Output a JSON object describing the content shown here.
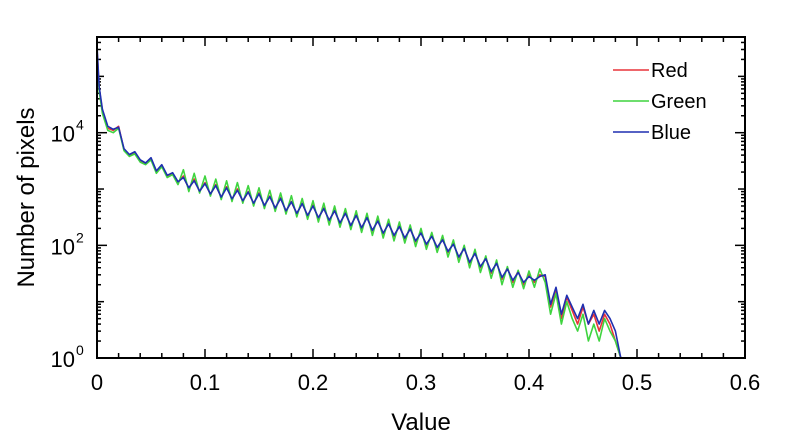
{
  "chart_data": {
    "type": "line",
    "title": "",
    "xlabel": "Value",
    "ylabel": "Number of pixels",
    "xlim": [
      0,
      0.6
    ],
    "ylim": [
      1,
      500000
    ],
    "yscale": "log",
    "grid": false,
    "legend_position": "top-right",
    "x_ticks": [
      "0",
      "0.1",
      "0.2",
      "0.3",
      "0.4",
      "0.5",
      "0.6"
    ],
    "x_tick_values": [
      0,
      0.1,
      0.2,
      0.3,
      0.4,
      0.5,
      0.6
    ],
    "y_ticks": [
      {
        "base": "10",
        "exp": "0",
        "value": 1
      },
      {
        "base": "10",
        "exp": "2",
        "value": 100
      },
      {
        "base": "10",
        "exp": "4",
        "value": 10000
      }
    ],
    "series": [
      {
        "name": "Red",
        "color": "#e8343a",
        "points": [
          [
            0,
            300000
          ],
          [
            0.002,
            60000
          ],
          [
            0.005,
            25000
          ],
          [
            0.01,
            12000
          ],
          [
            0.015,
            11000
          ],
          [
            0.02,
            13000
          ],
          [
            0.025,
            5000
          ],
          [
            0.03,
            4000
          ],
          [
            0.035,
            4500
          ],
          [
            0.04,
            3200
          ],
          [
            0.045,
            2800
          ],
          [
            0.05,
            3500
          ],
          [
            0.055,
            2000
          ],
          [
            0.06,
            2600
          ],
          [
            0.065,
            1700
          ],
          [
            0.07,
            1900
          ],
          [
            0.075,
            1300
          ],
          [
            0.08,
            1700
          ],
          [
            0.085,
            1000
          ],
          [
            0.09,
            1500
          ],
          [
            0.095,
            900
          ],
          [
            0.1,
            1300
          ],
          [
            0.105,
            800
          ],
          [
            0.11,
            1200
          ],
          [
            0.115,
            700
          ],
          [
            0.12,
            1100
          ],
          [
            0.125,
            650
          ],
          [
            0.13,
            1000
          ],
          [
            0.135,
            600
          ],
          [
            0.14,
            900
          ],
          [
            0.145,
            550
          ],
          [
            0.15,
            850
          ],
          [
            0.155,
            500
          ],
          [
            0.16,
            750
          ],
          [
            0.165,
            450
          ],
          [
            0.17,
            700
          ],
          [
            0.175,
            400
          ],
          [
            0.18,
            600
          ],
          [
            0.185,
            360
          ],
          [
            0.19,
            560
          ],
          [
            0.195,
            330
          ],
          [
            0.2,
            520
          ],
          [
            0.205,
            300
          ],
          [
            0.21,
            460
          ],
          [
            0.215,
            270
          ],
          [
            0.22,
            420
          ],
          [
            0.225,
            240
          ],
          [
            0.23,
            380
          ],
          [
            0.235,
            220
          ],
          [
            0.24,
            350
          ],
          [
            0.245,
            200
          ],
          [
            0.25,
            320
          ],
          [
            0.255,
            180
          ],
          [
            0.26,
            280
          ],
          [
            0.265,
            160
          ],
          [
            0.27,
            250
          ],
          [
            0.275,
            145
          ],
          [
            0.28,
            220
          ],
          [
            0.285,
            130
          ],
          [
            0.29,
            200
          ],
          [
            0.295,
            115
          ],
          [
            0.3,
            170
          ],
          [
            0.305,
            100
          ],
          [
            0.31,
            150
          ],
          [
            0.315,
            90
          ],
          [
            0.32,
            130
          ],
          [
            0.325,
            75
          ],
          [
            0.33,
            110
          ],
          [
            0.335,
            60
          ],
          [
            0.34,
            90
          ],
          [
            0.345,
            48
          ],
          [
            0.35,
            75
          ],
          [
            0.355,
            40
          ],
          [
            0.36,
            60
          ],
          [
            0.365,
            32
          ],
          [
            0.37,
            50
          ],
          [
            0.375,
            25
          ],
          [
            0.38,
            40
          ],
          [
            0.385,
            22
          ],
          [
            0.39,
            35
          ],
          [
            0.395,
            20
          ],
          [
            0.4,
            30
          ],
          [
            0.405,
            22
          ],
          [
            0.41,
            30
          ],
          [
            0.415,
            28
          ],
          [
            0.42,
            8
          ],
          [
            0.425,
            16
          ],
          [
            0.43,
            5
          ],
          [
            0.435,
            12
          ],
          [
            0.44,
            7
          ],
          [
            0.445,
            4
          ],
          [
            0.45,
            8
          ],
          [
            0.455,
            4
          ],
          [
            0.46,
            6
          ],
          [
            0.465,
            3
          ],
          [
            0.47,
            6
          ],
          [
            0.475,
            4
          ],
          [
            0.48,
            2
          ],
          [
            0.485,
            1
          ],
          [
            0.5,
            1
          ],
          [
            0.54,
            1
          ]
        ]
      },
      {
        "name": "Green",
        "color": "#3fd43f",
        "points": [
          [
            0,
            250000
          ],
          [
            0.002,
            55000
          ],
          [
            0.005,
            22000
          ],
          [
            0.01,
            11000
          ],
          [
            0.015,
            10000
          ],
          [
            0.02,
            12000
          ],
          [
            0.025,
            4800
          ],
          [
            0.03,
            3800
          ],
          [
            0.035,
            4200
          ],
          [
            0.04,
            3000
          ],
          [
            0.045,
            2700
          ],
          [
            0.05,
            3300
          ],
          [
            0.055,
            1900
          ],
          [
            0.06,
            2500
          ],
          [
            0.065,
            1600
          ],
          [
            0.07,
            1800
          ],
          [
            0.075,
            1200
          ],
          [
            0.08,
            2200
          ],
          [
            0.085,
            900
          ],
          [
            0.09,
            1900
          ],
          [
            0.095,
            850
          ],
          [
            0.1,
            1700
          ],
          [
            0.105,
            750
          ],
          [
            0.11,
            1500
          ],
          [
            0.115,
            650
          ],
          [
            0.12,
            1400
          ],
          [
            0.125,
            600
          ],
          [
            0.13,
            1300
          ],
          [
            0.135,
            560
          ],
          [
            0.14,
            1150
          ],
          [
            0.145,
            500
          ],
          [
            0.15,
            1050
          ],
          [
            0.155,
            450
          ],
          [
            0.16,
            950
          ],
          [
            0.165,
            400
          ],
          [
            0.17,
            850
          ],
          [
            0.175,
            360
          ],
          [
            0.18,
            760
          ],
          [
            0.185,
            320
          ],
          [
            0.19,
            680
          ],
          [
            0.195,
            290
          ],
          [
            0.2,
            620
          ],
          [
            0.205,
            260
          ],
          [
            0.21,
            560
          ],
          [
            0.215,
            230
          ],
          [
            0.22,
            500
          ],
          [
            0.225,
            210
          ],
          [
            0.23,
            450
          ],
          [
            0.235,
            190
          ],
          [
            0.24,
            410
          ],
          [
            0.245,
            170
          ],
          [
            0.25,
            370
          ],
          [
            0.255,
            150
          ],
          [
            0.26,
            330
          ],
          [
            0.265,
            135
          ],
          [
            0.27,
            290
          ],
          [
            0.275,
            120
          ],
          [
            0.28,
            260
          ],
          [
            0.285,
            110
          ],
          [
            0.29,
            230
          ],
          [
            0.295,
            95
          ],
          [
            0.3,
            200
          ],
          [
            0.305,
            85
          ],
          [
            0.31,
            170
          ],
          [
            0.315,
            75
          ],
          [
            0.32,
            150
          ],
          [
            0.325,
            62
          ],
          [
            0.33,
            125
          ],
          [
            0.335,
            50
          ],
          [
            0.34,
            100
          ],
          [
            0.345,
            40
          ],
          [
            0.35,
            85
          ],
          [
            0.355,
            33
          ],
          [
            0.36,
            65
          ],
          [
            0.365,
            26
          ],
          [
            0.37,
            55
          ],
          [
            0.375,
            20
          ],
          [
            0.38,
            42
          ],
          [
            0.385,
            18
          ],
          [
            0.39,
            36
          ],
          [
            0.395,
            17
          ],
          [
            0.4,
            35
          ],
          [
            0.405,
            18
          ],
          [
            0.41,
            38
          ],
          [
            0.415,
            22
          ],
          [
            0.42,
            6
          ],
          [
            0.425,
            14
          ],
          [
            0.43,
            4
          ],
          [
            0.435,
            10
          ],
          [
            0.44,
            5
          ],
          [
            0.445,
            3
          ],
          [
            0.45,
            6
          ],
          [
            0.455,
            2
          ],
          [
            0.46,
            4
          ],
          [
            0.465,
            2
          ],
          [
            0.47,
            5
          ],
          [
            0.475,
            3
          ],
          [
            0.48,
            2
          ],
          [
            0.485,
            1
          ],
          [
            0.5,
            1
          ],
          [
            0.54,
            1
          ]
        ]
      },
      {
        "name": "Blue",
        "color": "#1f2fb0",
        "points": [
          [
            0,
            350000
          ],
          [
            0.002,
            65000
          ],
          [
            0.005,
            26000
          ],
          [
            0.01,
            13000
          ],
          [
            0.015,
            11500
          ],
          [
            0.02,
            12500
          ],
          [
            0.025,
            5200
          ],
          [
            0.03,
            4100
          ],
          [
            0.035,
            4600
          ],
          [
            0.04,
            3300
          ],
          [
            0.045,
            2900
          ],
          [
            0.05,
            3600
          ],
          [
            0.055,
            2100
          ],
          [
            0.06,
            2700
          ],
          [
            0.065,
            1750
          ],
          [
            0.07,
            1950
          ],
          [
            0.075,
            1350
          ],
          [
            0.08,
            1600
          ],
          [
            0.085,
            1050
          ],
          [
            0.09,
            1400
          ],
          [
            0.095,
            920
          ],
          [
            0.1,
            1250
          ],
          [
            0.105,
            820
          ],
          [
            0.11,
            1150
          ],
          [
            0.115,
            720
          ],
          [
            0.12,
            1050
          ],
          [
            0.125,
            670
          ],
          [
            0.13,
            950
          ],
          [
            0.135,
            620
          ],
          [
            0.14,
            880
          ],
          [
            0.145,
            560
          ],
          [
            0.15,
            820
          ],
          [
            0.155,
            510
          ],
          [
            0.16,
            730
          ],
          [
            0.165,
            460
          ],
          [
            0.17,
            680
          ],
          [
            0.175,
            410
          ],
          [
            0.18,
            590
          ],
          [
            0.185,
            370
          ],
          [
            0.19,
            550
          ],
          [
            0.195,
            340
          ],
          [
            0.2,
            500
          ],
          [
            0.205,
            310
          ],
          [
            0.21,
            450
          ],
          [
            0.215,
            280
          ],
          [
            0.22,
            410
          ],
          [
            0.225,
            250
          ],
          [
            0.23,
            370
          ],
          [
            0.235,
            225
          ],
          [
            0.24,
            340
          ],
          [
            0.245,
            205
          ],
          [
            0.25,
            310
          ],
          [
            0.255,
            185
          ],
          [
            0.26,
            270
          ],
          [
            0.265,
            165
          ],
          [
            0.27,
            240
          ],
          [
            0.275,
            150
          ],
          [
            0.28,
            215
          ],
          [
            0.285,
            135
          ],
          [
            0.29,
            195
          ],
          [
            0.295,
            120
          ],
          [
            0.3,
            165
          ],
          [
            0.305,
            105
          ],
          [
            0.31,
            145
          ],
          [
            0.315,
            92
          ],
          [
            0.32,
            125
          ],
          [
            0.325,
            78
          ],
          [
            0.33,
            105
          ],
          [
            0.335,
            62
          ],
          [
            0.34,
            88
          ],
          [
            0.345,
            50
          ],
          [
            0.35,
            72
          ],
          [
            0.355,
            42
          ],
          [
            0.36,
            58
          ],
          [
            0.365,
            34
          ],
          [
            0.37,
            48
          ],
          [
            0.375,
            27
          ],
          [
            0.38,
            38
          ],
          [
            0.385,
            24
          ],
          [
            0.39,
            33
          ],
          [
            0.395,
            22
          ],
          [
            0.4,
            28
          ],
          [
            0.405,
            24
          ],
          [
            0.41,
            28
          ],
          [
            0.415,
            30
          ],
          [
            0.42,
            9
          ],
          [
            0.425,
            18
          ],
          [
            0.43,
            6
          ],
          [
            0.435,
            13
          ],
          [
            0.44,
            8
          ],
          [
            0.445,
            5
          ],
          [
            0.45,
            9
          ],
          [
            0.455,
            4
          ],
          [
            0.46,
            7
          ],
          [
            0.465,
            4
          ],
          [
            0.47,
            7
          ],
          [
            0.475,
            5
          ],
          [
            0.48,
            3
          ],
          [
            0.485,
            1
          ],
          [
            0.5,
            1
          ],
          [
            0.54,
            1
          ]
        ]
      }
    ]
  }
}
